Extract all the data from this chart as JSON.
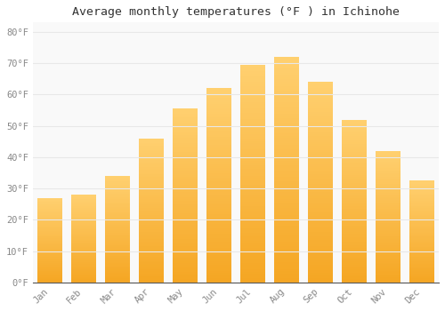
{
  "title": "Average monthly temperatures (°F ) in Ichinohe",
  "months": [
    "Jan",
    "Feb",
    "Mar",
    "Apr",
    "May",
    "Jun",
    "Jul",
    "Aug",
    "Sep",
    "Oct",
    "Nov",
    "Dec"
  ],
  "values": [
    27,
    28,
    34,
    46,
    55.5,
    62,
    69.5,
    72,
    64,
    52,
    42,
    32.5
  ],
  "bar_color_bottom": "#F5A623",
  "bar_color_top": "#FFD070",
  "background_color": "#ffffff",
  "plot_bg_color": "#f9f9f9",
  "grid_color": "#e8e8e8",
  "ylim": [
    0,
    83
  ],
  "yticks": [
    0,
    10,
    20,
    30,
    40,
    50,
    60,
    70,
    80
  ],
  "ytick_labels": [
    "0°F",
    "10°F",
    "20°F",
    "30°F",
    "40°F",
    "50°F",
    "60°F",
    "70°F",
    "80°F"
  ],
  "title_fontsize": 9.5,
  "tick_fontsize": 7.5,
  "tick_color": "#888888",
  "axis_color": "#555555",
  "font_family": "monospace",
  "bar_width": 0.72
}
